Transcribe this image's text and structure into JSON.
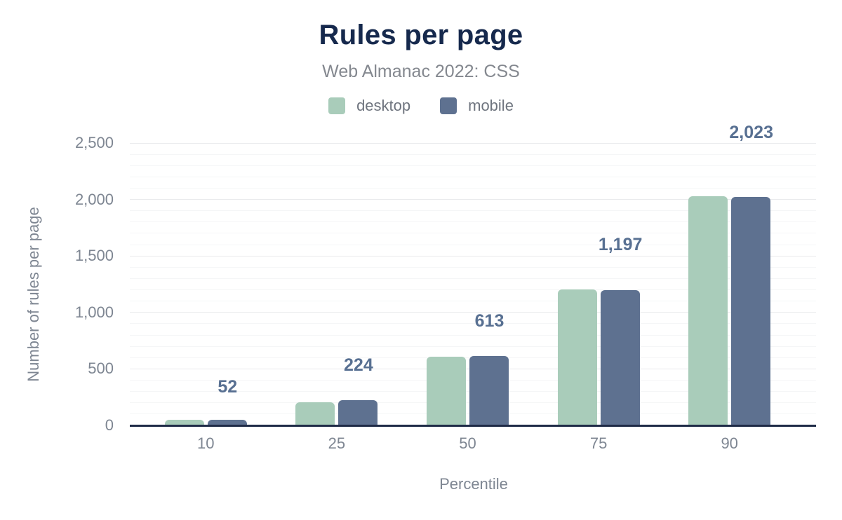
{
  "header": {
    "title": "Rules per page",
    "subtitle": "Web Almanac 2022: CSS"
  },
  "legend": {
    "items": [
      {
        "label": "desktop",
        "color": "#a9ccba"
      },
      {
        "label": "mobile",
        "color": "#5e7190"
      }
    ]
  },
  "chart_data": {
    "type": "bar",
    "title": "Rules per page",
    "subtitle": "Web Almanac 2022: CSS",
    "categories": [
      "10",
      "25",
      "50",
      "75",
      "90"
    ],
    "series": [
      {
        "name": "desktop",
        "color": "#a9ccba",
        "values": [
          48,
          205,
          608,
          1205,
          2030
        ],
        "values_estimated_from_bar_heights": true
      },
      {
        "name": "mobile",
        "color": "#5e7190",
        "values": [
          52,
          224,
          613,
          1197,
          2023
        ]
      }
    ],
    "bar_value_labels": {
      "series": "mobile",
      "texts": [
        "52",
        "224",
        "613",
        "1,197",
        "2,023"
      ]
    },
    "xlabel": "Percentile",
    "ylabel": "Number of rules per page",
    "ylim": [
      0,
      2500
    ],
    "yticks": [
      {
        "value": 0,
        "label": "0"
      },
      {
        "value": 500,
        "label": "500"
      },
      {
        "value": 1000,
        "label": "1,000"
      },
      {
        "value": 1500,
        "label": "1,500"
      },
      {
        "value": 2000,
        "label": "2,000"
      },
      {
        "value": 2500,
        "label": "2,500"
      }
    ],
    "grid": {
      "minor_step": 100,
      "major_step": 500,
      "orientation": "horizontal"
    },
    "legend_position": "top"
  },
  "colors": {
    "background": "#ffffff",
    "title": "#16294d",
    "subtitle": "#84888f",
    "legend_text": "#6e747e",
    "tick_labels": "#7e8692",
    "axis_line": "#1f2b47",
    "gridline_major": "#e9eaec",
    "gridline_minor": "#f5f6f7",
    "bar_value_label": "#587092",
    "desktop_bar": "#a9ccba",
    "mobile_bar": "#5e7190"
  }
}
